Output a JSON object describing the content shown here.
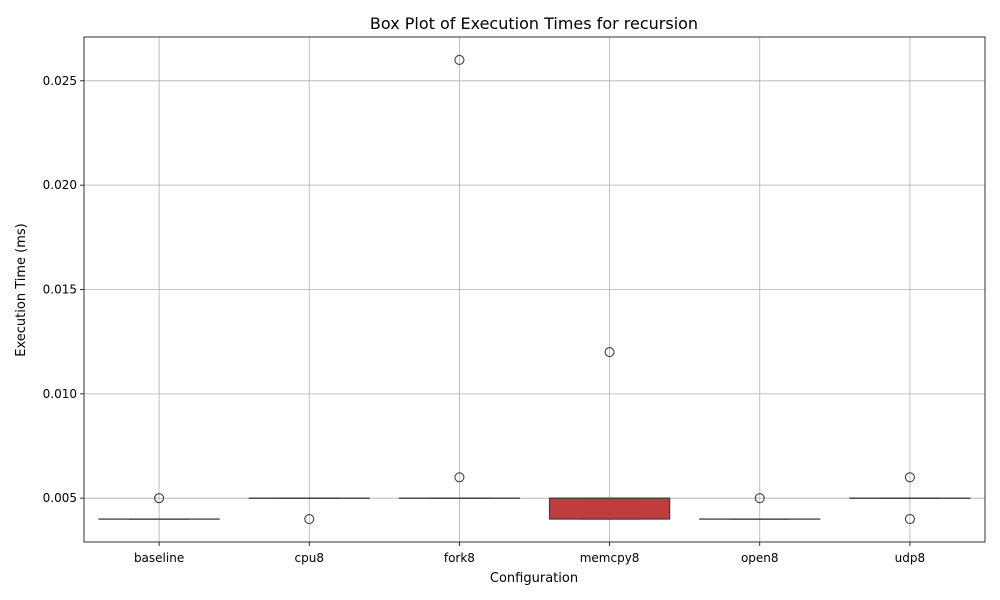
{
  "chart_data": {
    "type": "box",
    "title": "Box Plot of Execution Times for recursion",
    "xlabel": "Configuration",
    "ylabel": "Execution Time (ms)",
    "categories": [
      "baseline",
      "cpu8",
      "fork8",
      "memcpy8",
      "open8",
      "udp8"
    ],
    "ylim": [
      0.0029,
      0.0271
    ],
    "yticks": [
      0.005,
      0.01,
      0.015,
      0.02,
      0.025
    ],
    "ytick_labels": [
      "0.005",
      "0.010",
      "0.015",
      "0.020",
      "0.025"
    ],
    "grid": true,
    "boxes": [
      {
        "category": "baseline",
        "q1": 0.004,
        "median": 0.004,
        "q3": 0.004,
        "whisker_low": 0.004,
        "whisker_high": 0.004,
        "outliers": [
          0.005
        ],
        "color": "#3a67b0"
      },
      {
        "category": "cpu8",
        "q1": 0.005,
        "median": 0.005,
        "q3": 0.005,
        "whisker_low": 0.005,
        "whisker_high": 0.005,
        "outliers": [
          0.004
        ],
        "color": "#e1812c"
      },
      {
        "category": "fork8",
        "q1": 0.005,
        "median": 0.005,
        "q3": 0.005,
        "whisker_low": 0.005,
        "whisker_high": 0.005,
        "outliers": [
          0.026,
          0.006
        ],
        "color": "#3a923a"
      },
      {
        "category": "memcpy8",
        "q1": 0.004,
        "median": 0.005,
        "q3": 0.005,
        "whisker_low": 0.004,
        "whisker_high": 0.005,
        "outliers": [
          0.012
        ],
        "color": "#c03d3e"
      },
      {
        "category": "open8",
        "q1": 0.004,
        "median": 0.004,
        "q3": 0.004,
        "whisker_low": 0.004,
        "whisker_high": 0.004,
        "outliers": [
          0.005
        ],
        "color": "#9372b2"
      },
      {
        "category": "udp8",
        "q1": 0.005,
        "median": 0.005,
        "q3": 0.005,
        "whisker_low": 0.005,
        "whisker_high": 0.005,
        "outliers": [
          0.006,
          0.004
        ],
        "color": "#845b53"
      }
    ]
  }
}
